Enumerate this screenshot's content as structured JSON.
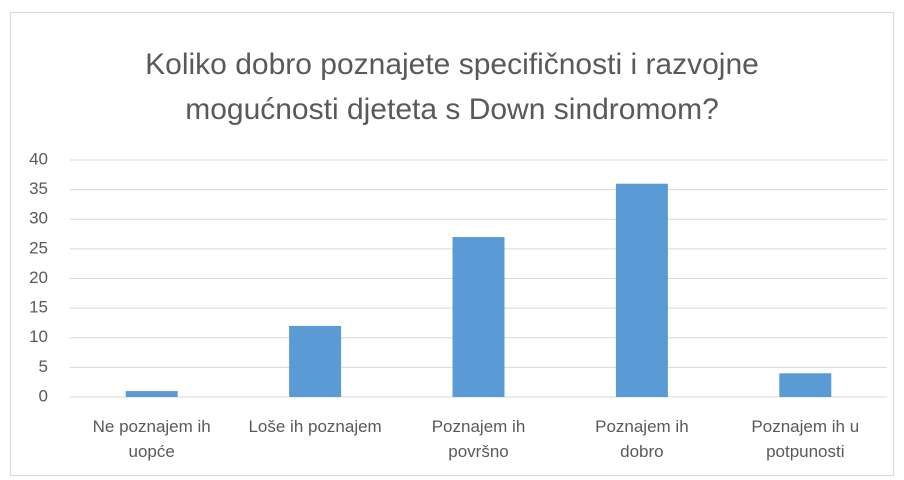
{
  "chart_data": {
    "type": "bar",
    "title": "Koliko dobro poznajete specifičnosti i razvojne mogućnosti djeteta s Down sindromom?",
    "categories": [
      "Ne poznajem ih uopće",
      "Loše ih poznajem",
      "Poznajem ih površno",
      "Poznajem ih dobro",
      "Poznajem ih u potpunosti"
    ],
    "values": [
      1,
      12,
      27,
      36,
      4
    ],
    "color": "#5b9bd5",
    "ylim": [
      0,
      40
    ],
    "yticks": [
      0,
      5,
      10,
      15,
      20,
      25,
      30,
      35,
      40
    ],
    "grid": true
  }
}
